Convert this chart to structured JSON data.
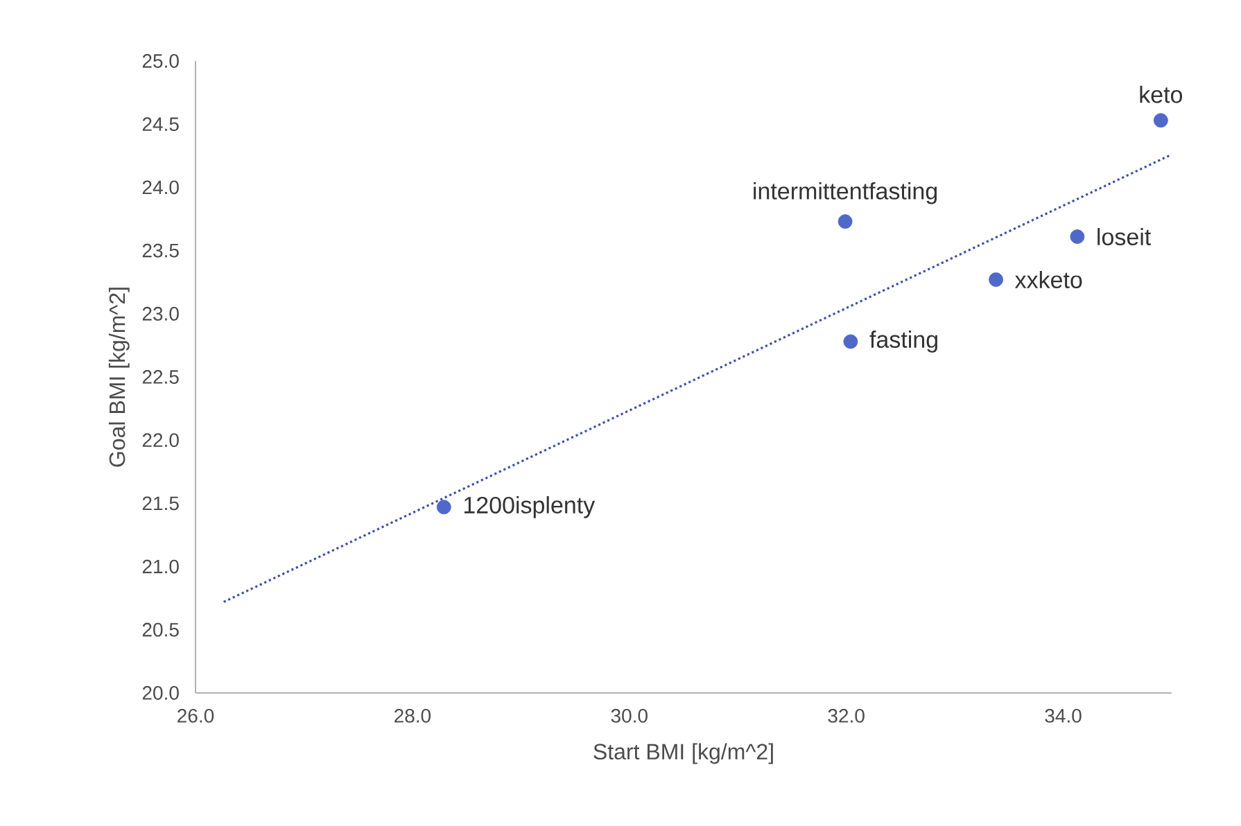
{
  "chart_data": {
    "type": "scatter",
    "xlabel": "Start BMI  [kg/m^2]",
    "ylabel": "Goal BMI [kg/m^2]",
    "xlim": [
      26,
      35
    ],
    "ylim": [
      20,
      25
    ],
    "xticks": [
      {
        "value": 26,
        "label": "26.0"
      },
      {
        "value": 28,
        "label": "28.0"
      },
      {
        "value": 30,
        "label": "30.0"
      },
      {
        "value": 32,
        "label": "32.0"
      },
      {
        "value": 34,
        "label": "34.0"
      }
    ],
    "yticks": [
      {
        "value": 20,
        "label": "20.0"
      },
      {
        "value": 20.5,
        "label": "20.5"
      },
      {
        "value": 21,
        "label": "21.0"
      },
      {
        "value": 21.5,
        "label": "21.5"
      },
      {
        "value": 22,
        "label": "22.0"
      },
      {
        "value": 22.5,
        "label": "22.5"
      },
      {
        "value": 23,
        "label": "23.0"
      },
      {
        "value": 23.5,
        "label": "23.5"
      },
      {
        "value": 24,
        "label": "24.0"
      },
      {
        "value": 24.5,
        "label": "24.5"
      },
      {
        "value": 25,
        "label": "25.0"
      }
    ],
    "series": [
      {
        "type": "scatter",
        "color": "#4f68c9",
        "marker": "circle",
        "x": [
          28.29,
          31.99,
          32.04,
          33.38,
          34.13,
          34.9
        ],
        "values": [
          21.47,
          23.73,
          22.78,
          23.27,
          23.61,
          24.53
        ]
      },
      {
        "type": "line",
        "color": "#3f4fa8",
        "line_style": "dotted",
        "marker": "none",
        "x": [
          26.26,
          35.0
        ],
        "values": [
          20.72,
          24.26
        ]
      }
    ],
    "annotations": [
      {
        "text": "1200isplenty",
        "x": 28.29,
        "y": 21.47
      },
      {
        "text": "intermittentfasting",
        "x": 31.99,
        "y": 23.73
      },
      {
        "text": "fasting",
        "x": 32.04,
        "y": 22.78
      },
      {
        "text": "xxketo",
        "x": 33.38,
        "y": 23.27
      },
      {
        "text": "loseit",
        "x": 34.13,
        "y": 23.61
      },
      {
        "text": "keto",
        "x": 34.9,
        "y": 24.53
      }
    ]
  }
}
